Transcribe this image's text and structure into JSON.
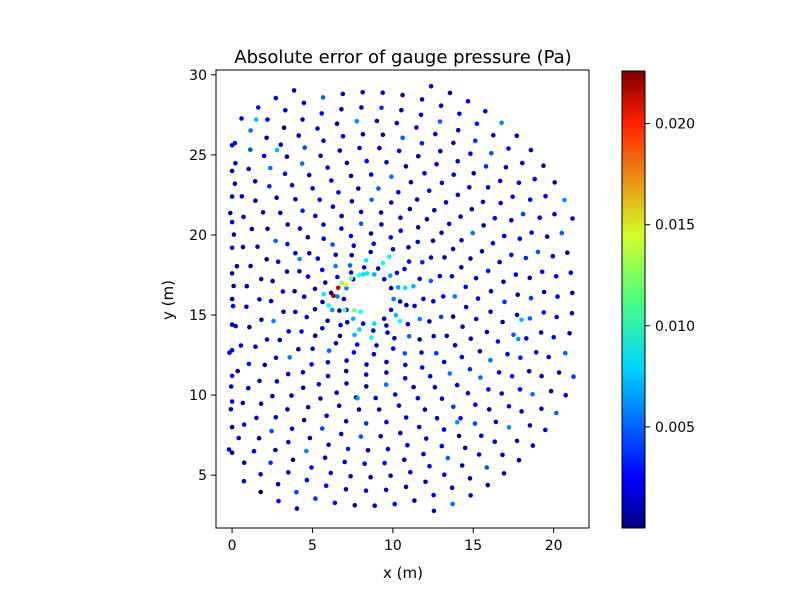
{
  "chart_data": {
    "type": "scatter",
    "title": "Absolute error of gauge pressure (Pa)",
    "xlabel": "x (m)",
    "ylabel": "y (m)",
    "xlim": [
      -1,
      22.2
    ],
    "ylim": [
      1.7,
      30.3
    ],
    "xticks": [
      0,
      5,
      10,
      15,
      20
    ],
    "yticks": [
      5,
      10,
      15,
      20,
      25,
      30
    ],
    "colorbar": {
      "colormap": "jet",
      "min": 0.0,
      "max": 0.0226,
      "ticks": [
        0.005,
        0.01,
        0.015,
        0.02
      ],
      "tick_labels": [
        "0.005",
        "0.010",
        "0.015",
        "0.020"
      ]
    },
    "obstacle": {
      "shape": "ellipse",
      "center": [
        8.5,
        16.0
      ],
      "semi_axes": [
        1.4,
        0.4
      ]
    },
    "points_description": "scattered probe points on concentric rings around the elliptical obstacle; most errors near 0, largest (~0.02 Pa) at the obstacle's left edge",
    "high_error_points": [
      {
        "x": 6.3,
        "y": 16.2,
        "v": 0.022
      },
      {
        "x": 6.6,
        "y": 16.7,
        "v": 0.021
      },
      {
        "x": 7.1,
        "y": 16.9,
        "v": 0.014
      },
      {
        "x": 7.4,
        "y": 17.3,
        "v": 0.011
      },
      {
        "x": 6.8,
        "y": 17.0,
        "v": 0.012
      },
      {
        "x": 7.0,
        "y": 15.3,
        "v": 0.01
      },
      {
        "x": 7.6,
        "y": 15.3,
        "v": 0.011
      },
      {
        "x": 8.0,
        "y": 15.2,
        "v": 0.009
      },
      {
        "x": 7.9,
        "y": 17.5,
        "v": 0.009
      },
      {
        "x": 8.4,
        "y": 17.6,
        "v": 0.008
      },
      {
        "x": 6.0,
        "y": 15.6,
        "v": 0.009
      },
      {
        "x": 5.7,
        "y": 16.3,
        "v": 0.008
      },
      {
        "x": 1.5,
        "y": 27.2,
        "v": 0.007
      },
      {
        "x": 2.8,
        "y": 25.3,
        "v": 0.007
      },
      {
        "x": 4.2,
        "y": 18.5,
        "v": 0.006
      },
      {
        "x": 7.8,
        "y": 9.8,
        "v": 0.006
      },
      {
        "x": 14.0,
        "y": 8.3,
        "v": 0.006
      },
      {
        "x": 18.0,
        "y": 14.7,
        "v": 0.007
      },
      {
        "x": 17.8,
        "y": 13.5,
        "v": 0.006
      }
    ]
  }
}
